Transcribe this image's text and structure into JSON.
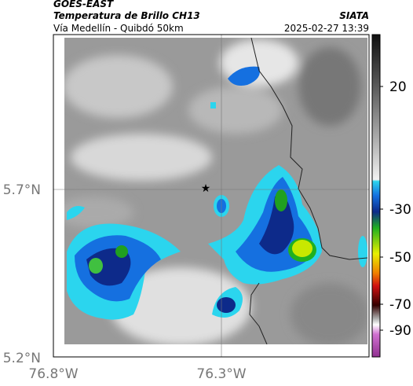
{
  "header": {
    "source": "GOES-EAST",
    "title": "Temperatura de Brillo CH13",
    "org": "SIATA",
    "region": "Vía Medellín - Quibdó 50km",
    "timestamp": "2025-02-27 13:39"
  },
  "map": {
    "lat_labels": [
      "5.7°N",
      "5.2°N"
    ],
    "lon_labels": [
      "76.8°W",
      "76.3°W"
    ]
  },
  "colorbar": {
    "ticks": [
      "20",
      "-30",
      "-50",
      "-70",
      "-90"
    ]
  }
}
